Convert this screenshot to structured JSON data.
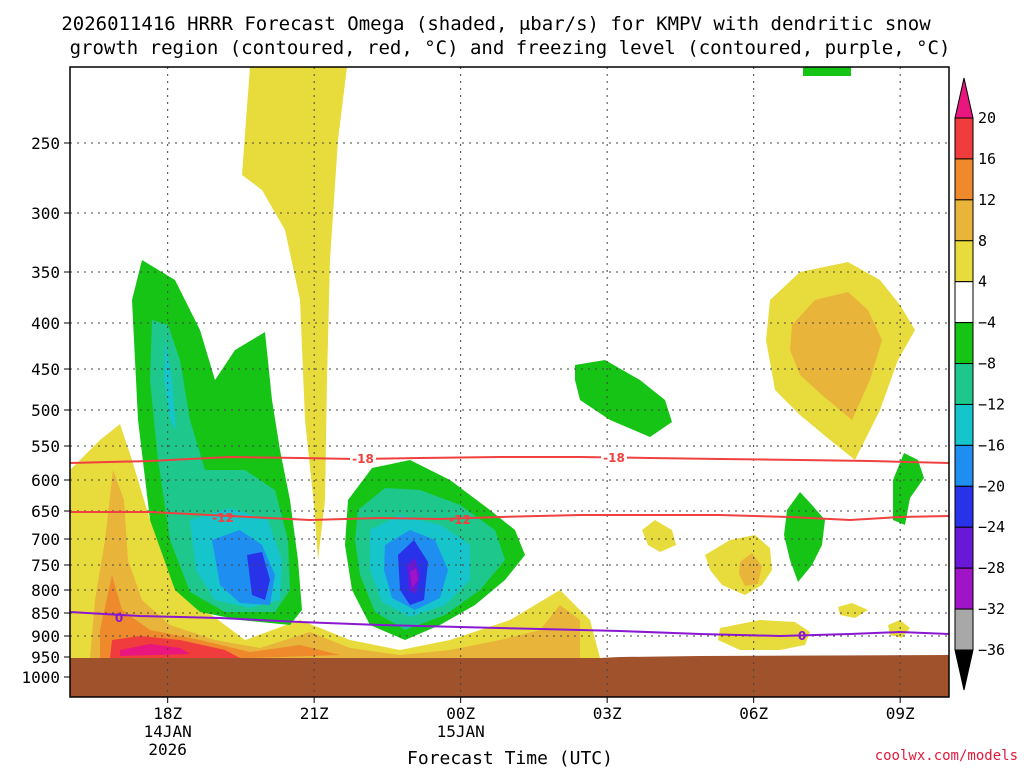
{
  "chart_data": {
    "type": "heatmap",
    "title_line1": "2026011416 HRRR Forecast Omega (shaded, μbar/s) for KMPV with dendritic snow",
    "title_line2": "growth region (contoured, red, °C) and freezing level (contoured, purple, °C)",
    "xlabel": "Forecast Time (UTC)",
    "ylabel": "",
    "x_ticks": [
      {
        "hour": 18,
        "label": "18Z",
        "sub1": "14JAN",
        "sub2": "2026"
      },
      {
        "hour": 21,
        "label": "21Z",
        "sub1": "",
        "sub2": ""
      },
      {
        "hour": 24,
        "label": "00Z",
        "sub1": "15JAN",
        "sub2": ""
      },
      {
        "hour": 27,
        "label": "03Z",
        "sub1": "",
        "sub2": ""
      },
      {
        "hour": 30,
        "label": "06Z",
        "sub1": "",
        "sub2": ""
      },
      {
        "hour": 33,
        "label": "09Z",
        "sub1": "",
        "sub2": ""
      }
    ],
    "xlim_hours": [
      16,
      34
    ],
    "y_ticks_hpa": [
      250,
      300,
      350,
      400,
      450,
      500,
      550,
      600,
      650,
      700,
      750,
      800,
      850,
      900,
      950,
      1000
    ],
    "ylim_hpa": [
      1040,
      195
    ],
    "y_scale": "log-pressure",
    "grid": true,
    "colorbar": {
      "levels": [
        "20",
        "16",
        "12",
        "8",
        "4",
        "−4",
        "−8",
        "−12",
        "−16",
        "−20",
        "−24",
        "−28",
        "−32",
        "−36"
      ],
      "colors": [
        "#e8167e",
        "#f03c3c",
        "#ee8a2c",
        "#e8b43a",
        "#e8dc3c",
        "#ffffff",
        "#16c416",
        "#1ec88c",
        "#16c4cc",
        "#1e8ef0",
        "#2832e8",
        "#6a18d8",
        "#a014c8",
        "#a8a8a8",
        "#000000"
      ]
    },
    "contours": [
      {
        "name": "dendritic snow growth region",
        "color": "#f04040",
        "label": "-18",
        "approx_pressure_hpa": 571
      },
      {
        "name": "dendritic snow growth region",
        "color": "#f04040",
        "label": "-12",
        "approx_pressure_hpa": 662
      },
      {
        "name": "freezing level",
        "color": "#8a18d0",
        "label": "0",
        "approx_pressure_hpa": 885
      }
    ],
    "surface_color": "#a0522d",
    "max_upward_motion": {
      "value_ubar_s": -36,
      "time": "~23Z 14JAN",
      "pressure_hpa": 780
    }
  },
  "credit": "coolwx.com/models"
}
